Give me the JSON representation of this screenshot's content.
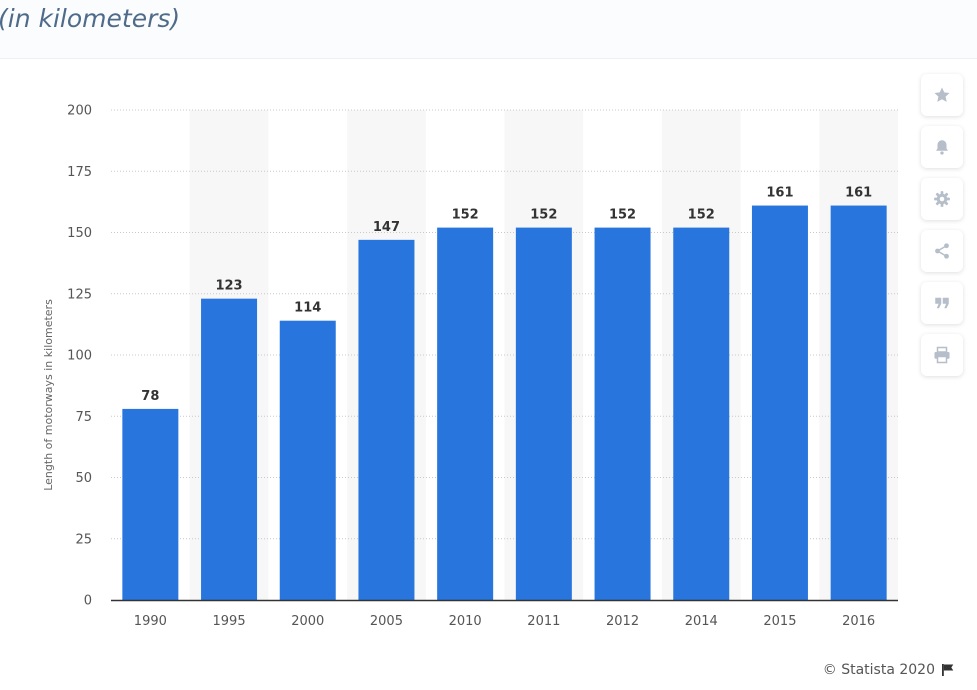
{
  "header": {
    "subtitle": "(in kilometers)"
  },
  "chart_data": {
    "type": "bar",
    "title": "",
    "subtitle": "(in kilometers)",
    "xlabel": "",
    "ylabel": "Length of motorways in kilometers",
    "categories": [
      "1990",
      "1995",
      "2000",
      "2005",
      "2010",
      "2011",
      "2012",
      "2014",
      "2015",
      "2016"
    ],
    "values": [
      78,
      123,
      114,
      147,
      152,
      152,
      152,
      152,
      161,
      161
    ],
    "ylim": [
      0,
      200
    ],
    "yticks": [
      0,
      25,
      50,
      75,
      100,
      125,
      150,
      175,
      200
    ],
    "grid": true,
    "data_labels": true,
    "bar_color": "#2876dd",
    "alternating_band_color": "#f7f7f7"
  },
  "toolbar": {
    "buttons": [
      {
        "name": "favorite",
        "icon": "star-icon"
      },
      {
        "name": "notification",
        "icon": "bell-icon"
      },
      {
        "name": "settings",
        "icon": "gear-icon"
      },
      {
        "name": "share",
        "icon": "share-icon"
      },
      {
        "name": "cite",
        "icon": "quote-icon"
      },
      {
        "name": "print",
        "icon": "printer-icon"
      }
    ],
    "icon_color": "#b5bec9"
  },
  "footer": {
    "copyright": "© Statista 2020",
    "icon": "flag-icon"
  }
}
